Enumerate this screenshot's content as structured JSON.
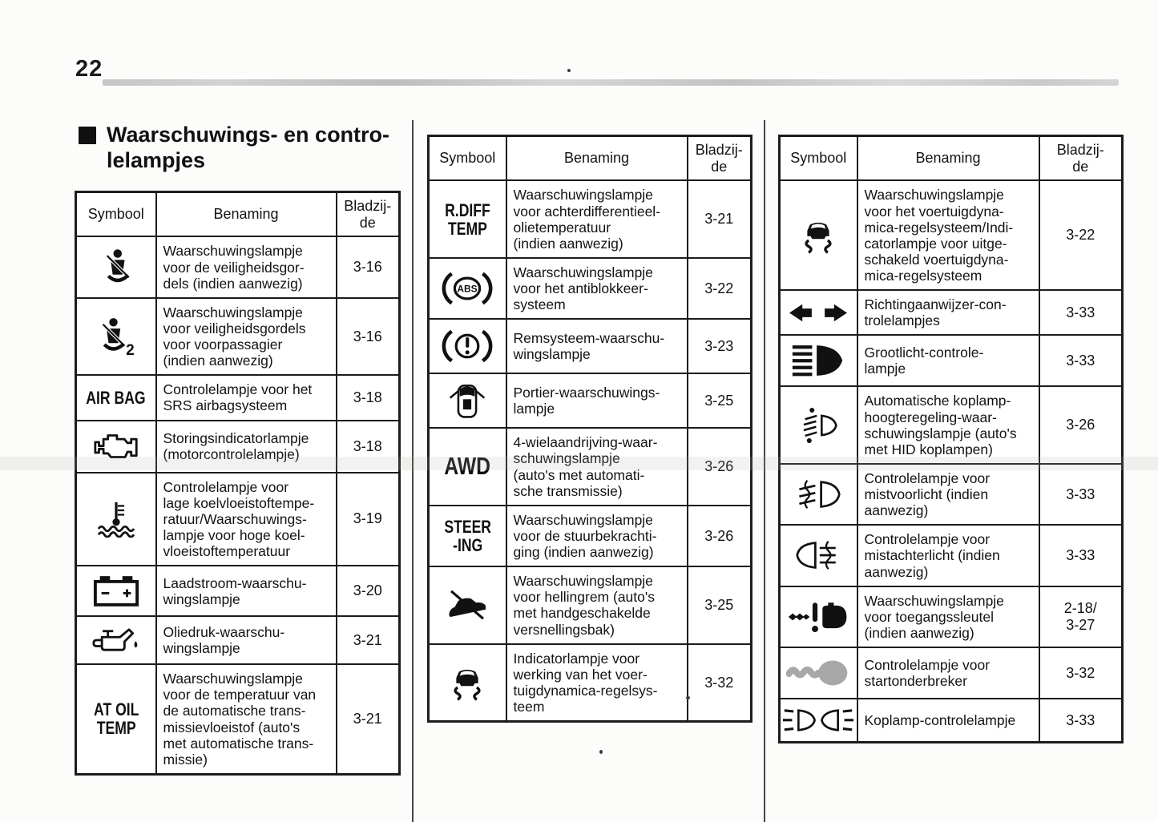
{
  "page_number": "22",
  "section_heading": "Waarschuwings- en contro-\nlelampjes",
  "table_headers": {
    "symbol": "Symbool",
    "name": "Benaming",
    "page": "Bladzij-\nde"
  },
  "colors": {
    "ink": "#111111",
    "table_border": "#1c1c1c",
    "top_rule_gray": "#c9c9c9",
    "key_gray": "#a8a8a8"
  },
  "tables": [
    {
      "rows": [
        {
          "icon": "seatbelt-warning-icon",
          "name": "Waarschuwingslampje\nvoor de veiligheidsgor-\ndels (indien aanwezig)",
          "page": "3-16"
        },
        {
          "icon": "seatbelt-passenger-warning-icon",
          "name": "Waarschuwingslampje\nvoor veiligheidsgordels\nvoor voorpassagier\n(indien aanwezig)",
          "page": "3-16"
        },
        {
          "symbol_text": "AIR BAG",
          "name": "Controlelampje voor het\nSRS airbagsysteem",
          "page": "3-18"
        },
        {
          "icon": "check-engine-icon",
          "name": "Storingsindicatorlampje\n(motorcontrolelampje)",
          "page": "3-18"
        },
        {
          "icon": "coolant-temperature-icon",
          "name": "Controlelampje voor\nlage koelvloeistoftempe-\nratuur/Waarschuwings-\nlampje voor hoge koel-\nvloeistoftemperatuur",
          "page": "3-19"
        },
        {
          "icon": "battery-charge-icon",
          "name": "Laadstroom-waarschu-\nwingslampje",
          "page": "3-20"
        },
        {
          "icon": "oil-pressure-icon",
          "name": "Oliedruk-waarschu-\nwingslampje",
          "page": "3-21"
        },
        {
          "symbol_text": "AT OIL\nTEMP",
          "name": "Waarschuwingslampje\nvoor de temperatuur van\nde automatische trans-\nmissievloeistof (auto's\nmet automatische trans-\nmissie)",
          "page": "3-21"
        }
      ]
    },
    {
      "rows": [
        {
          "symbol_text": "R.DIFF\nTEMP",
          "name": "Waarschuwingslampje\nvoor achterdifferentieel-\nolietemperatuur\n(indien aanwezig)",
          "page": "3-21"
        },
        {
          "icon": "abs-warning-icon",
          "name": "Waarschuwingslampje\nvoor het antiblokkeer-\nsysteem",
          "page": "3-22"
        },
        {
          "icon": "brake-warning-icon",
          "name": "Remsysteem-waarschu-\nwingslampje",
          "page": "3-23"
        },
        {
          "icon": "door-open-icon",
          "name": "Portier-waarschuwings-\nlampje",
          "page": "3-25"
        },
        {
          "symbol_text": "AWD",
          "name": "4-wielaandrijving-waar-\nschuwingslampje\n(auto's met automati-\nsche transmissie)",
          "page": "3-26"
        },
        {
          "symbol_text": "STEER\n-ING",
          "name": "Waarschuwingslampje\nvoor de stuurbekrachti-\nging (indien aanwezig)",
          "page": "3-26"
        },
        {
          "icon": "hill-holder-icon",
          "name": "Waarschuwingslampje\nvoor hellingrem (auto's\nmet handgeschakelde\nversnellingsbak)",
          "page": "3-25"
        },
        {
          "icon": "vdc-operation-icon",
          "name": "Indicatorlampje voor\nwerking van het voer-\ntuigdynamica-regelsys-\nteem",
          "page": "3-32"
        }
      ]
    },
    {
      "rows": [
        {
          "icon": "vdc-off-warning-icon",
          "name": "Waarschuwingslampje\nvoor het voertuigdyna-\nmica-regelsysteem/Indi-\ncatorlampje voor uitge-\nschakeld voertuigdyna-\nmica-regelsysteem",
          "page": "3-22"
        },
        {
          "icon": "turn-signal-arrows-icon",
          "name": "Richtingaanwijzer-con-\ntrolelampjes",
          "page": "3-33"
        },
        {
          "icon": "high-beam-icon",
          "name": "Grootlicht-controle-\nlampje",
          "page": "3-33"
        },
        {
          "icon": "headlight-leveling-icon",
          "name": "Automatische koplamp-\nhoogteregeling-waar-\nschuwingslampje (auto's\nmet HID koplampen)",
          "page": "3-26"
        },
        {
          "icon": "front-fog-light-icon",
          "name": "Controlelampje voor\nmistvoorlicht (indien\naanwezig)",
          "page": "3-33"
        },
        {
          "icon": "rear-fog-light-icon",
          "name": "Controlelampje voor\nmistachterlicht (indien\naanwezig)",
          "page": "3-33"
        },
        {
          "icon": "access-key-warning-icon",
          "name": "Waarschuwingslampje\nvoor toegangssleutel\n(indien aanwezig)",
          "page": "2-18/\n3-27"
        },
        {
          "icon": "immobilizer-key-icon",
          "name": "Controlelampje voor\nstartonderbreker",
          "page": "3-32"
        },
        {
          "icon": "headlight-indicator-icon",
          "name": "Koplamp-controlelampje",
          "page": "3-33"
        }
      ]
    }
  ]
}
